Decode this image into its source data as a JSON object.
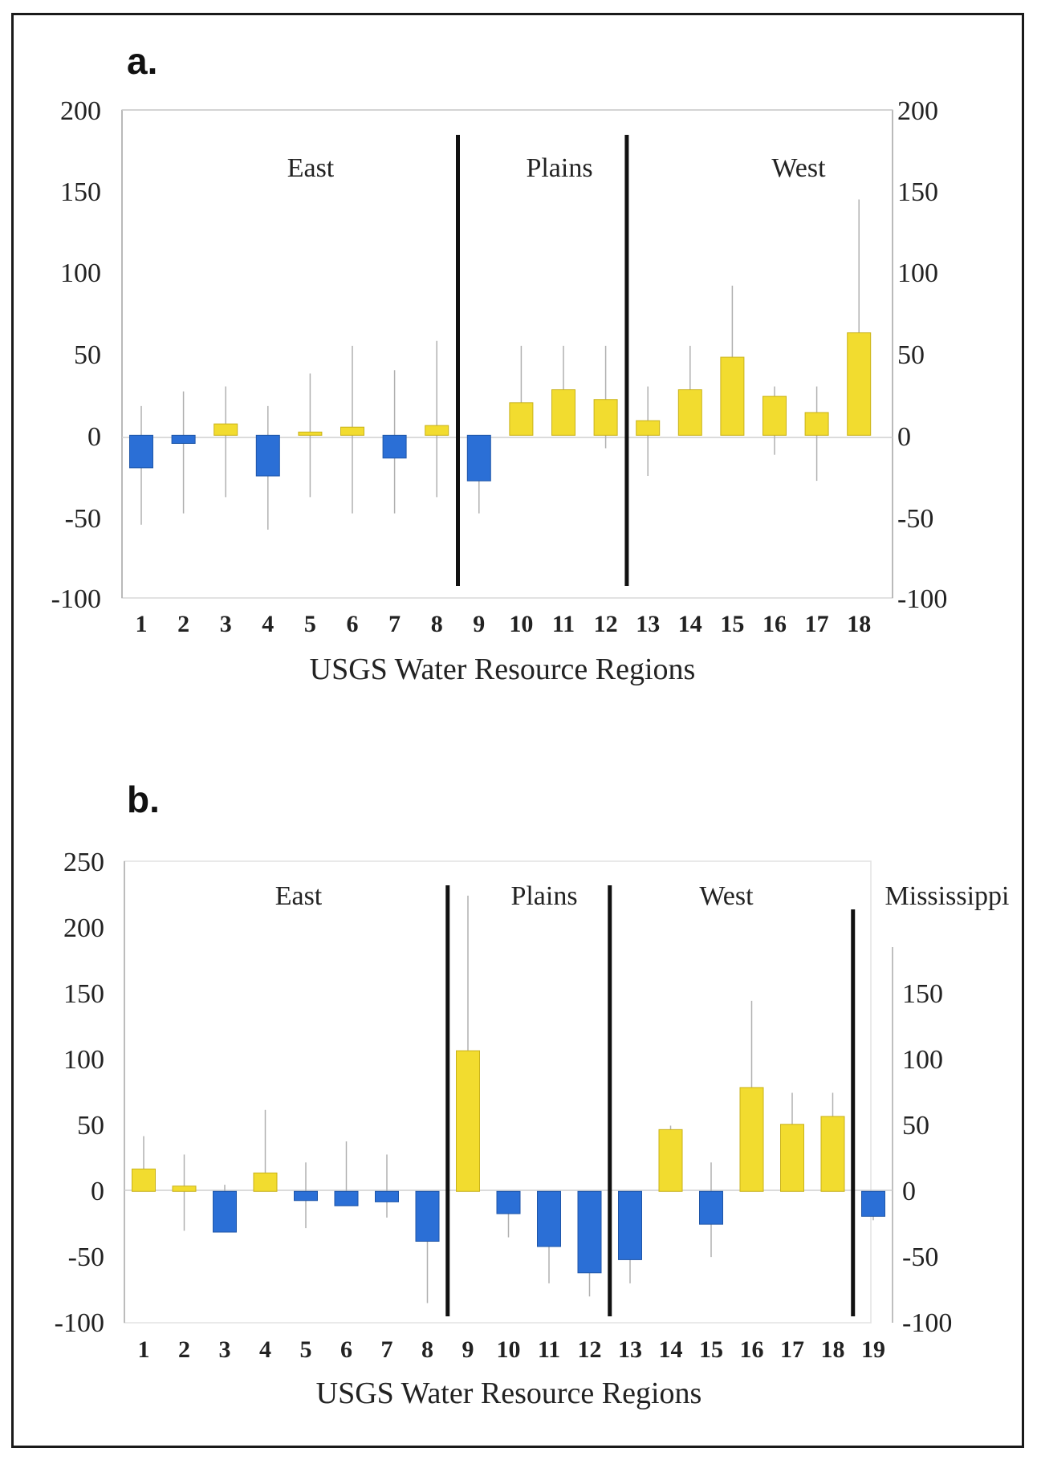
{
  "chart_data": [
    {
      "panel": "a.",
      "type": "bar",
      "categories": [
        "1",
        "2",
        "3",
        "4",
        "5",
        "6",
        "7",
        "8",
        "9",
        "10",
        "11",
        "12",
        "13",
        "14",
        "15",
        "16",
        "17",
        "18"
      ],
      "values": [
        -20,
        -5,
        7,
        -25,
        2,
        5,
        -14,
        6,
        -28,
        20,
        28,
        22,
        9,
        28,
        48,
        24,
        14,
        63
      ],
      "error_low": [
        -55,
        -48,
        -38,
        -58,
        -38,
        -48,
        -48,
        -38,
        -48,
        0,
        0,
        -8,
        -25,
        0,
        0,
        -12,
        -28,
        0
      ],
      "error_high": [
        18,
        27,
        30,
        18,
        38,
        55,
        40,
        58,
        0,
        55,
        55,
        55,
        30,
        55,
        92,
        30,
        30,
        145
      ],
      "colors": {
        "positive": "#f2dc2f",
        "negative": "#2b6fd6"
      },
      "yticks": [
        "200",
        "150",
        "100",
        "50",
        "0",
        "-50",
        "-100"
      ],
      "ylim": [
        -100,
        200
      ],
      "xlabel": "USGS Water Resource Regions",
      "groups": [
        {
          "label": "East",
          "after": 8
        },
        {
          "label": "Plains",
          "after": 12
        },
        {
          "label": "West",
          "after": null
        }
      ]
    },
    {
      "panel": "b.",
      "type": "bar",
      "categories": [
        "1",
        "2",
        "3",
        "4",
        "5",
        "6",
        "7",
        "8",
        "9",
        "10",
        "11",
        "12",
        "13",
        "14",
        "15",
        "16",
        "17",
        "18",
        "19"
      ],
      "values": [
        17,
        4,
        -31,
        14,
        -7,
        -11,
        -8,
        -38,
        107,
        -17,
        -42,
        -62,
        -52,
        47,
        -25,
        79,
        51,
        57,
        -19
      ],
      "error_low": [
        0,
        -30,
        -31,
        0,
        -28,
        -11,
        -20,
        -85,
        0,
        -35,
        -70,
        -80,
        -70,
        0,
        -50,
        0,
        0,
        0,
        -22
      ],
      "error_high": [
        42,
        28,
        5,
        62,
        22,
        38,
        28,
        0,
        225,
        0,
        0,
        0,
        0,
        50,
        22,
        145,
        75,
        75,
        0
      ],
      "colors": {
        "positive": "#f2dc2f",
        "negative": "#2b6fd6"
      },
      "yticks_left": [
        "250",
        "200",
        "150",
        "100",
        "50",
        "0",
        "-50",
        "-100"
      ],
      "yticks_right": [
        "150",
        "100",
        "50",
        "0",
        "-50",
        "-100"
      ],
      "ylim": [
        -100,
        250
      ],
      "xlabel": "USGS Water Resource Regions",
      "groups": [
        {
          "label": "East",
          "after": 8
        },
        {
          "label": "Plains",
          "after": 12
        },
        {
          "label": "West",
          "after": 18
        },
        {
          "label": "Mississippi",
          "after": null
        }
      ]
    }
  ]
}
